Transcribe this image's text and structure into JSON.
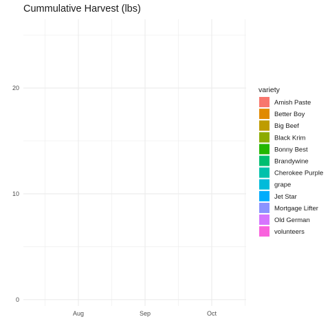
{
  "chart_data": {
    "type": "area",
    "title": "Cummulative Harvest (lbs)",
    "xlabel": "",
    "ylabel": "",
    "x_ticks": [
      "Aug",
      "Sep",
      "Oct"
    ],
    "y_ticks": [
      0,
      10,
      20
    ],
    "ylim": [
      -0.6,
      26.5
    ],
    "legend": {
      "title": "variety",
      "position": "right",
      "items": [
        {
          "name": "Amish Paste",
          "color": "#F8766D"
        },
        {
          "name": "Better Boy",
          "color": "#E18A00"
        },
        {
          "name": "Big Beef",
          "color": "#BE9C00"
        },
        {
          "name": "Black Krim",
          "color": "#8CAB00"
        },
        {
          "name": "Bonny Best",
          "color": "#24B700"
        },
        {
          "name": "Brandywine",
          "color": "#00BE70"
        },
        {
          "name": "Cherokee Purple",
          "color": "#00C1AB"
        },
        {
          "name": "grape",
          "color": "#00BBDA"
        },
        {
          "name": "Jet Star",
          "color": "#00ACFC"
        },
        {
          "name": "Mortgage Lifter",
          "color": "#8B93FF"
        },
        {
          "name": "Old German",
          "color": "#D575FE"
        },
        {
          "name": "volunteers",
          "color": "#F962DD"
        }
      ]
    },
    "series": []
  },
  "colors": {
    "grid": "#ebebeb",
    "background": "#ffffff"
  }
}
